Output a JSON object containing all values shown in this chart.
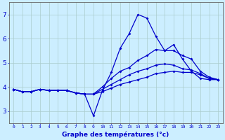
{
  "xlabel": "Graphe des températures (°c)",
  "bg_color": "#cceeff",
  "line_color": "#0000cc",
  "grid_color": "#aacccc",
  "hours": [
    0,
    1,
    2,
    3,
    4,
    5,
    6,
    7,
    8,
    9,
    10,
    11,
    12,
    13,
    14,
    15,
    16,
    17,
    18,
    19,
    20,
    21,
    22,
    23
  ],
  "series1": [
    3.9,
    3.8,
    3.8,
    3.9,
    3.85,
    3.85,
    3.85,
    3.75,
    3.7,
    2.8,
    3.85,
    4.6,
    5.6,
    6.2,
    7.0,
    6.85,
    6.1,
    5.5,
    5.75,
    5.15,
    4.65,
    4.35,
    4.3,
    4.3
  ],
  "series2": [
    3.9,
    3.8,
    3.8,
    3.9,
    3.85,
    3.85,
    3.85,
    3.75,
    3.7,
    3.7,
    4.0,
    4.35,
    4.65,
    4.8,
    5.1,
    5.3,
    5.55,
    5.5,
    5.5,
    5.3,
    5.15,
    4.65,
    4.4,
    4.3
  ],
  "series3": [
    3.9,
    3.8,
    3.8,
    3.9,
    3.85,
    3.85,
    3.85,
    3.75,
    3.7,
    3.7,
    3.9,
    4.1,
    4.3,
    4.5,
    4.65,
    4.75,
    4.9,
    4.95,
    4.9,
    4.75,
    4.7,
    4.55,
    4.35,
    4.3
  ],
  "series4": [
    3.9,
    3.8,
    3.8,
    3.9,
    3.85,
    3.85,
    3.85,
    3.75,
    3.7,
    3.7,
    3.8,
    3.95,
    4.1,
    4.2,
    4.3,
    4.4,
    4.55,
    4.6,
    4.65,
    4.6,
    4.6,
    4.5,
    4.35,
    4.3
  ],
  "ylim": [
    2.5,
    7.5
  ],
  "yticks": [
    3,
    4,
    5,
    6,
    7
  ],
  "xlim": [
    -0.5,
    23.5
  ]
}
